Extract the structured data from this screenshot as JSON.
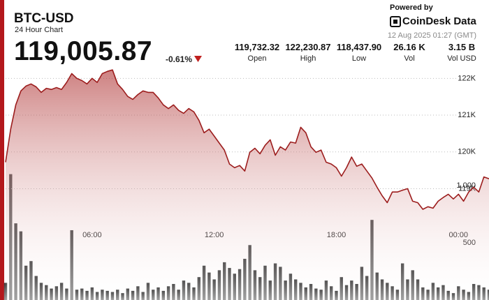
{
  "header": {
    "title": "BTC-USD",
    "subtitle": "24 Hour Chart",
    "price": "119,005.87",
    "change": "-0.61%",
    "stats": [
      {
        "value": "119,732.32",
        "label": "Open"
      },
      {
        "value": "122,230.87",
        "label": "High"
      },
      {
        "value": "118,437.90",
        "label": "Low"
      },
      {
        "value": "26.16 K",
        "label": "Vol"
      },
      {
        "value": "3.15 B",
        "label": "Vol USD"
      }
    ],
    "powered_by": "Powered by",
    "brand": "CoinDesk Data",
    "timestamp": "12 Aug 2025 01:27 (GMT)"
  },
  "chart_data": {
    "type": "line",
    "color": "#9c1d1d",
    "categories": [
      null,
      null,
      null,
      null,
      null,
      null,
      null,
      null,
      null,
      null,
      null,
      null,
      null,
      null,
      null,
      null,
      null,
      "06:00",
      null,
      null,
      null,
      null,
      null,
      null,
      null,
      null,
      null,
      null,
      null,
      null,
      null,
      null,
      null,
      null,
      null,
      null,
      null,
      null,
      null,
      null,
      null,
      "12:00",
      null,
      null,
      null,
      null,
      null,
      null,
      null,
      null,
      null,
      null,
      null,
      null,
      null,
      null,
      null,
      null,
      null,
      null,
      null,
      null,
      null,
      null,
      null,
      "18:00",
      null,
      null,
      null,
      null,
      null,
      null,
      null,
      null,
      null,
      null,
      null,
      null,
      null,
      null,
      null,
      null,
      null,
      null,
      null,
      null,
      null,
      null,
      null,
      "00:00",
      null,
      null,
      null,
      null,
      null,
      null
    ],
    "values": [
      119720,
      120620,
      121280,
      121660,
      121790,
      121850,
      121770,
      121620,
      121730,
      121700,
      121750,
      121700,
      121890,
      122130,
      122000,
      121940,
      121850,
      122000,
      121890,
      122130,
      122190,
      122230,
      121850,
      121700,
      121510,
      121430,
      121560,
      121660,
      121620,
      121620,
      121470,
      121280,
      121180,
      121280,
      121130,
      121050,
      121180,
      121090,
      120860,
      120520,
      120620,
      120430,
      120240,
      120050,
      119670,
      119570,
      119630,
      119480,
      119990,
      120100,
      119950,
      120180,
      120330,
      119910,
      120140,
      120050,
      120270,
      120240,
      120670,
      120520,
      120140,
      119990,
      120050,
      119720,
      119670,
      119570,
      119340,
      119570,
      119860,
      119610,
      119670,
      119480,
      119290,
      119040,
      118810,
      118620,
      118910,
      118910,
      118960,
      119000,
      118660,
      118620,
      118440,
      118510,
      118470,
      118660,
      118760,
      118850,
      118720,
      118850,
      118660,
      118910,
      119040,
      118910,
      119320,
      119270
    ],
    "ylim": [
      117500,
      122500
    ],
    "yticks": [
      {
        "value": 119000,
        "label": "119K"
      },
      {
        "value": 120000,
        "label": "120K"
      },
      {
        "value": 121000,
        "label": "121K"
      },
      {
        "value": 122000,
        "label": "122K"
      }
    ],
    "grid": true,
    "volume": {
      "color": "#4a4a4a",
      "values": [
        150,
        1100,
        670,
        600,
        300,
        340,
        210,
        150,
        130,
        100,
        120,
        150,
        100,
        610,
        90,
        100,
        80,
        110,
        70,
        90,
        80,
        70,
        90,
        60,
        100,
        80,
        120,
        70,
        150,
        90,
        110,
        80,
        120,
        140,
        90,
        170,
        150,
        110,
        200,
        300,
        240,
        180,
        260,
        330,
        280,
        230,
        270,
        360,
        480,
        260,
        200,
        300,
        170,
        320,
        290,
        170,
        230,
        180,
        150,
        110,
        140,
        100,
        90,
        170,
        120,
        80,
        200,
        130,
        170,
        140,
        290,
        210,
        700,
        240,
        180,
        150,
        120,
        90,
        320,
        180,
        260,
        180,
        110,
        90,
        150,
        110,
        130,
        80,
        60,
        120,
        90,
        70,
        140,
        130,
        110,
        90
      ],
      "y2lim": [
        0,
        1000
      ],
      "y2ticks": [
        500,
        {
          "value": 1000,
          "label": "1,000"
        }
      ]
    }
  }
}
